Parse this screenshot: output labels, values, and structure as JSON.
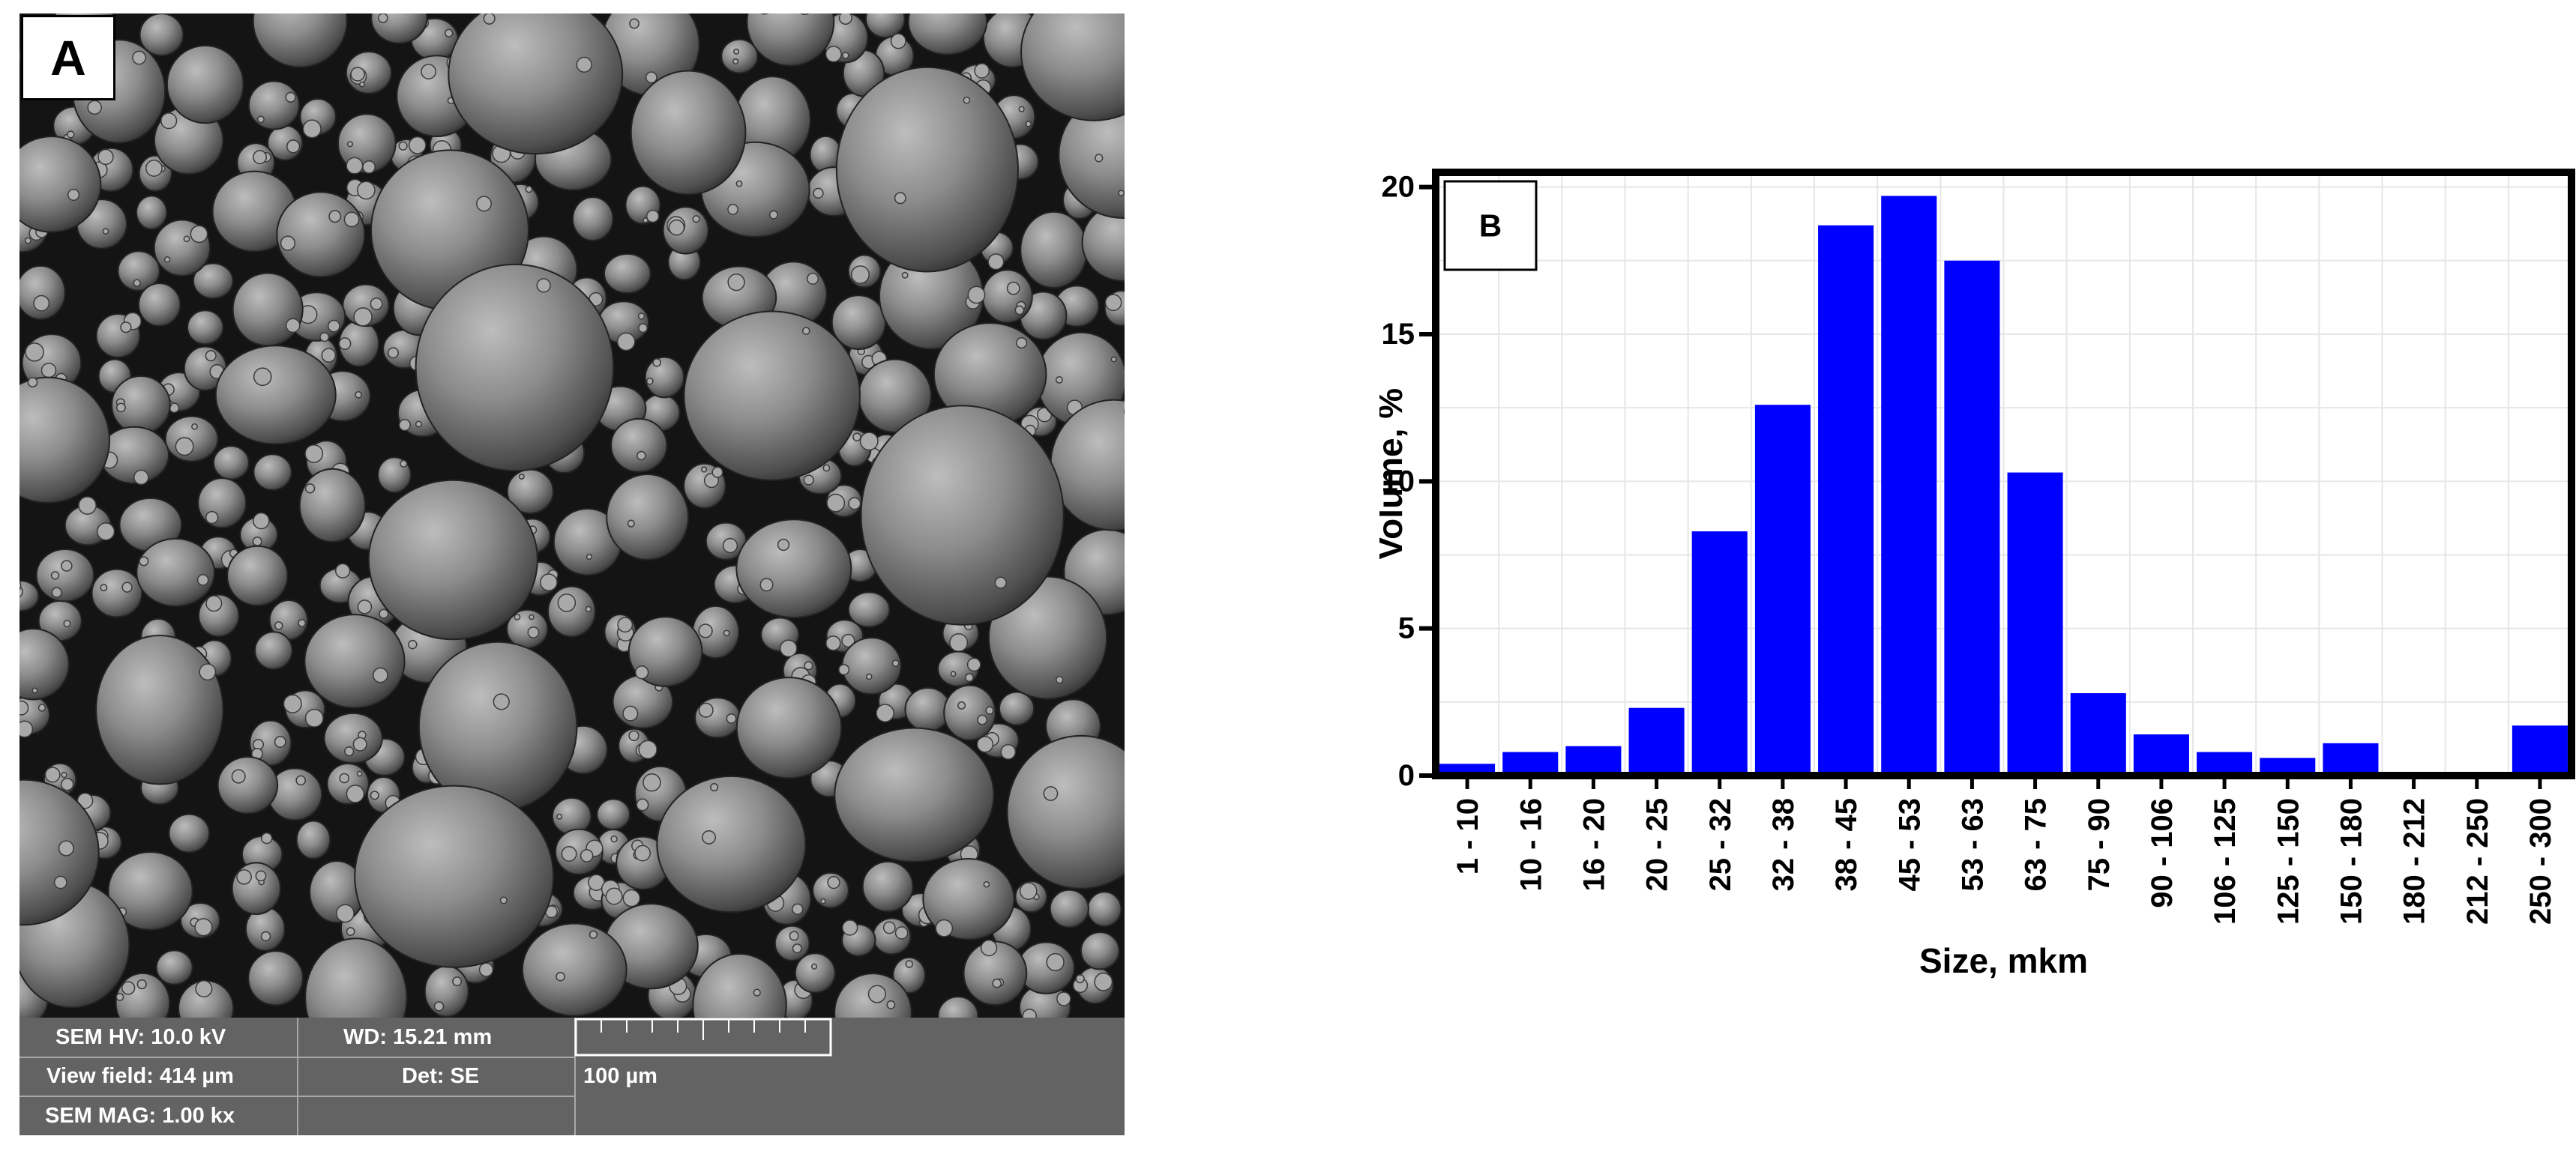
{
  "panel_a": {
    "label": "A",
    "info": {
      "sem_hv": "SEM HV: 10.0 kV",
      "wd": "WD: 15.21 mm",
      "view_field": "View field: 414 µm",
      "det": "Det: SE",
      "sem_mag": "SEM MAG: 1.00 kx",
      "scale_bar_label": "100 µm"
    }
  },
  "chart_data": {
    "type": "bar",
    "panel_label": "B",
    "title": "",
    "xlabel": "Size, mkm",
    "ylabel": "Volume, %",
    "ylim": [
      0,
      20.5
    ],
    "yticks": [
      0,
      5,
      10,
      15,
      20
    ],
    "grid": true,
    "bar_color": "#0000ff",
    "categories": [
      "1 - 10",
      "10 - 16",
      "16 - 20",
      "20 - 25",
      "25 - 32",
      "32 - 38",
      "38 - 45",
      "45 - 53",
      "53 - 63",
      "63 - 75",
      "75 - 90",
      "90 - 106",
      "106 - 125",
      "125 - 150",
      "150 - 180",
      "180 - 212",
      "212 - 250",
      "250 - 300"
    ],
    "values": [
      0.4,
      0.8,
      1.0,
      2.3,
      8.3,
      12.6,
      18.7,
      19.7,
      17.5,
      10.3,
      2.8,
      1.4,
      0.8,
      0.6,
      1.1,
      0,
      0,
      1.7
    ]
  }
}
